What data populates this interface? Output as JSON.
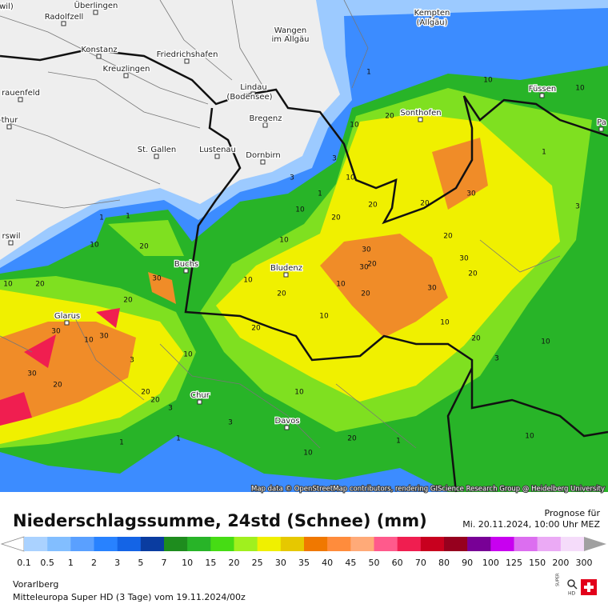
{
  "map": {
    "places": [
      "(twil)",
      "Überlingen",
      "Radolfzell",
      "Kempten",
      "(Allgäu)",
      "Wangen",
      "im Allgäu",
      "Konstanz",
      "Kreuzlingen",
      "Friedrichshafen",
      "Lindau",
      "(Bodensee)",
      "Füssen",
      "rauenfeld",
      "thur",
      "Sonthofen",
      "Bregenz",
      "St. Gallen",
      "Lustenau",
      "Dornbirn",
      "Buchs",
      "Bludenz",
      "Glarus",
      "Chur",
      "Davos",
      "rswil",
      "Pa"
    ],
    "contour_labels": [
      "1",
      "1",
      "3",
      "10",
      "10",
      "1",
      "10",
      "20",
      "10",
      "20",
      "10",
      "3",
      "1",
      "10",
      "20",
      "20",
      "30",
      "20",
      "20",
      "1",
      "3",
      "10",
      "20",
      "10",
      "10",
      "20",
      "30",
      "30",
      "20",
      "30",
      "20",
      "30",
      "20",
      "10",
      "20",
      "10",
      "20",
      "30",
      "30",
      "20",
      "30",
      "30",
      "20",
      "10",
      "20",
      "10",
      "1",
      "3",
      "10",
      "3",
      "1",
      "20",
      "10",
      "3",
      "1",
      "10",
      "10",
      "10",
      "20",
      "3"
    ],
    "attribution": "Map data © OpenStreetMap contributors, rendering GIScience Research Group @ Heidelberg University"
  },
  "legend": {
    "title": "Niederschlagssumme, 24std (Schnee) (mm)",
    "forecast_label": "Prognose für",
    "forecast_time": "Mi. 20.11.2024, 10:00 Uhr MEZ",
    "labels": [
      "0.1",
      "0.5",
      "1",
      "2",
      "3",
      "5",
      "7",
      "10",
      "15",
      "20",
      "25",
      "30",
      "35",
      "40",
      "45",
      "50",
      "60",
      "70",
      "80",
      "90",
      "100",
      "125",
      "150",
      "200",
      "300"
    ],
    "colors": [
      "#aad2ff",
      "#82beff",
      "#5aa0ff",
      "#2882ff",
      "#1464e6",
      "#0a3ca0",
      "#1e8c1e",
      "#28b428",
      "#46dc14",
      "#a0f01e",
      "#f0f000",
      "#e6c800",
      "#f07800",
      "#ff8c3c",
      "#ffaa78",
      "#ff5a8c",
      "#f01e50",
      "#c8001e",
      "#96001e",
      "#780096",
      "#c800f0",
      "#dc6ef0",
      "#ebaaf5",
      "#f5dcfa"
    ],
    "below_color": "#ffffff",
    "above_color": "#a0a0a0",
    "region": "Vorarlberg",
    "model": "Mitteleuropa Super HD (3 Tage) vom  19.11.2024/00z",
    "logo_top": "SUPER",
    "logo_bottom": "HD"
  }
}
